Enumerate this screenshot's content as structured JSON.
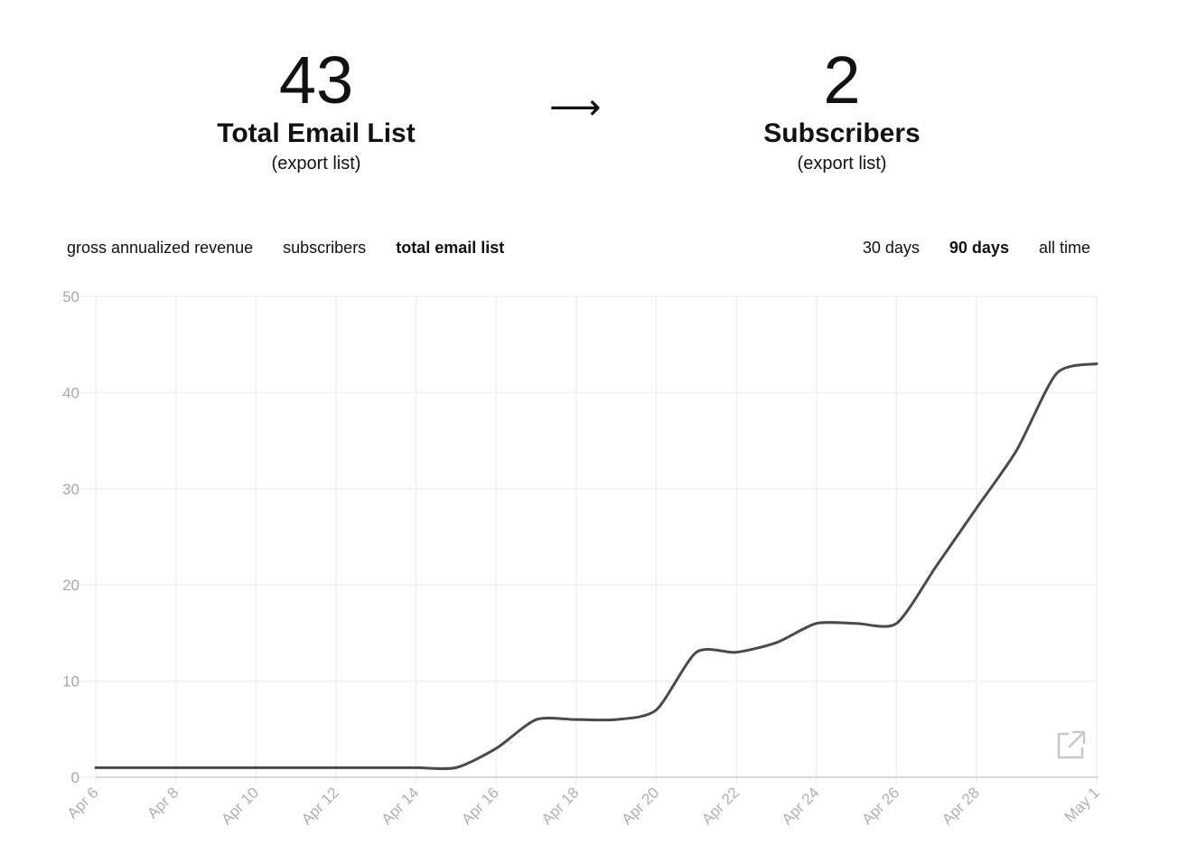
{
  "summary": {
    "left": {
      "value": "43",
      "label": "Total Email List",
      "link": "(export list)"
    },
    "arrow": "⟶",
    "right": {
      "value": "2",
      "label": "Subscribers",
      "link": "(export list)"
    }
  },
  "metric_tabs": [
    {
      "label": "gross annualized revenue",
      "active": false
    },
    {
      "label": "subscribers",
      "active": false
    },
    {
      "label": "total email list",
      "active": true
    }
  ],
  "range_tabs": [
    {
      "label": "30 days",
      "active": false
    },
    {
      "label": "90 days",
      "active": true
    },
    {
      "label": "all time",
      "active": false
    }
  ],
  "chart_data": {
    "type": "line",
    "x": [
      "Apr 6",
      "Apr 7",
      "Apr 8",
      "Apr 9",
      "Apr 10",
      "Apr 11",
      "Apr 12",
      "Apr 13",
      "Apr 14",
      "Apr 15",
      "Apr 16",
      "Apr 17",
      "Apr 18",
      "Apr 19",
      "Apr 20",
      "Apr 21",
      "Apr 22",
      "Apr 23",
      "Apr 24",
      "Apr 25",
      "Apr 26",
      "Apr 27",
      "Apr 28",
      "Apr 29",
      "Apr 30",
      "May 1"
    ],
    "values": [
      1,
      1,
      1,
      1,
      1,
      1,
      1,
      1,
      1,
      1,
      3,
      6,
      6,
      6,
      7,
      13,
      13,
      14,
      16,
      16,
      16,
      22,
      28,
      34,
      42,
      43
    ],
    "xticks": [
      "Apr 6",
      "Apr 8",
      "Apr 10",
      "Apr 12",
      "Apr 14",
      "Apr 16",
      "Apr 18",
      "Apr 20",
      "Apr 22",
      "Apr 24",
      "Apr 26",
      "Apr 28",
      "May 1"
    ],
    "yticks": [
      0,
      10,
      20,
      30,
      40,
      50
    ],
    "ylim": [
      0,
      50
    ],
    "grid": true,
    "line_color": "#4a4a4a",
    "grid_color": "#f0f0f0",
    "icons": [
      "external-link-icon"
    ]
  }
}
